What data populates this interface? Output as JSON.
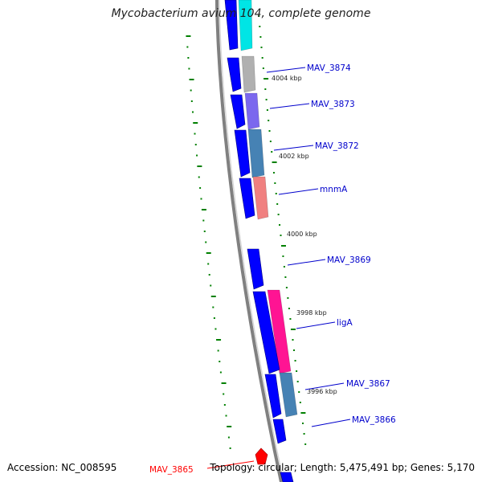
{
  "title": "Mycobacterium avium 104, complete genome",
  "accession": "Accession: NC_008595",
  "summary": "Topology: circular; Length: 5,475,491 bp; Genes: 5,170",
  "colors": {
    "strand": "#0000ff",
    "backbone": "#808080",
    "tick": "#008000",
    "label": "#0000cc",
    "highlight": "#ff0000"
  },
  "kbp_labels": [
    "4004 kbp",
    "4002 kbp",
    "4000 kbp",
    "3998 kbp",
    "3996 kbp"
  ],
  "genes": [
    {
      "label": "",
      "color": "#00e5e5"
    },
    {
      "label": "MAV_3874",
      "color": "#b0b0b0"
    },
    {
      "label": "MAV_3873",
      "color": "#7b68ee"
    },
    {
      "label": "MAV_3872",
      "color": "#4682b4"
    },
    {
      "label": "mnmA",
      "color": "#f08080"
    },
    {
      "label": "MAV_3869",
      "color": ""
    },
    {
      "label": "ligA",
      "color": "#ff1493"
    },
    {
      "label": "MAV_3867",
      "color": "#4682b4"
    },
    {
      "label": "MAV_3866",
      "color": ""
    },
    {
      "label": "MAV_3865",
      "color": ""
    }
  ]
}
